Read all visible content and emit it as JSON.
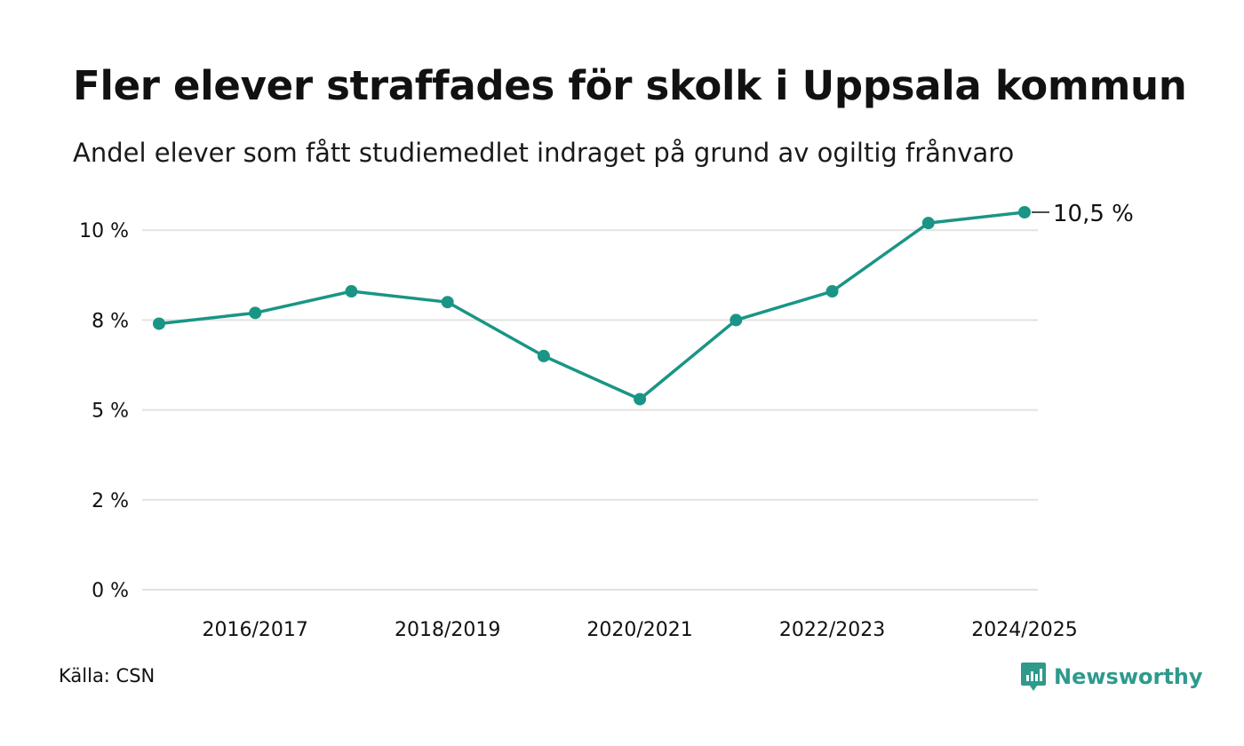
{
  "header": {
    "title": "Fler elever straffades för skolk i Uppsala kommun",
    "subtitle": "Andel elever som fått studiemedlet indraget på grund av ogiltig frånvaro"
  },
  "footer": {
    "source": "Källa: CSN",
    "brand": "Newsworthy",
    "brand_icon": "newsworthy-logo-icon"
  },
  "colors": {
    "line": "#1a9585",
    "grid": "#e2e2e2",
    "text": "#111111",
    "brand": "#2e9a8c"
  },
  "chart_data": {
    "type": "line",
    "title": "Fler elever straffades för skolk i Uppsala kommun",
    "subtitle": "Andel elever som fått studiemedlet indraget på grund av ogiltig frånvaro",
    "x": [
      "2015/2016",
      "2016/2017",
      "2017/2018",
      "2018/2019",
      "2019/2020",
      "2020/2021",
      "2021/2022",
      "2022/2023",
      "2023/2024",
      "2024/2025"
    ],
    "x_tick_labels": [
      "2016/2017",
      "2018/2019",
      "2020/2021",
      "2022/2023",
      "2024/2025"
    ],
    "series": [
      {
        "values": [
          7.4,
          7.7,
          8.3,
          8.0,
          6.5,
          5.3,
          7.5,
          8.3,
          10.2,
          10.5
        ]
      }
    ],
    "y_ticks": [
      0,
      2.5,
      5,
      7.5,
      10
    ],
    "y_tick_labels": [
      "0 %",
      "2 %",
      "5 %",
      "8 %",
      "10 %"
    ],
    "ylim": [
      0,
      10.5
    ],
    "end_label": "10,5 %",
    "grid": true,
    "legend": "none",
    "source": "Källa: CSN"
  }
}
